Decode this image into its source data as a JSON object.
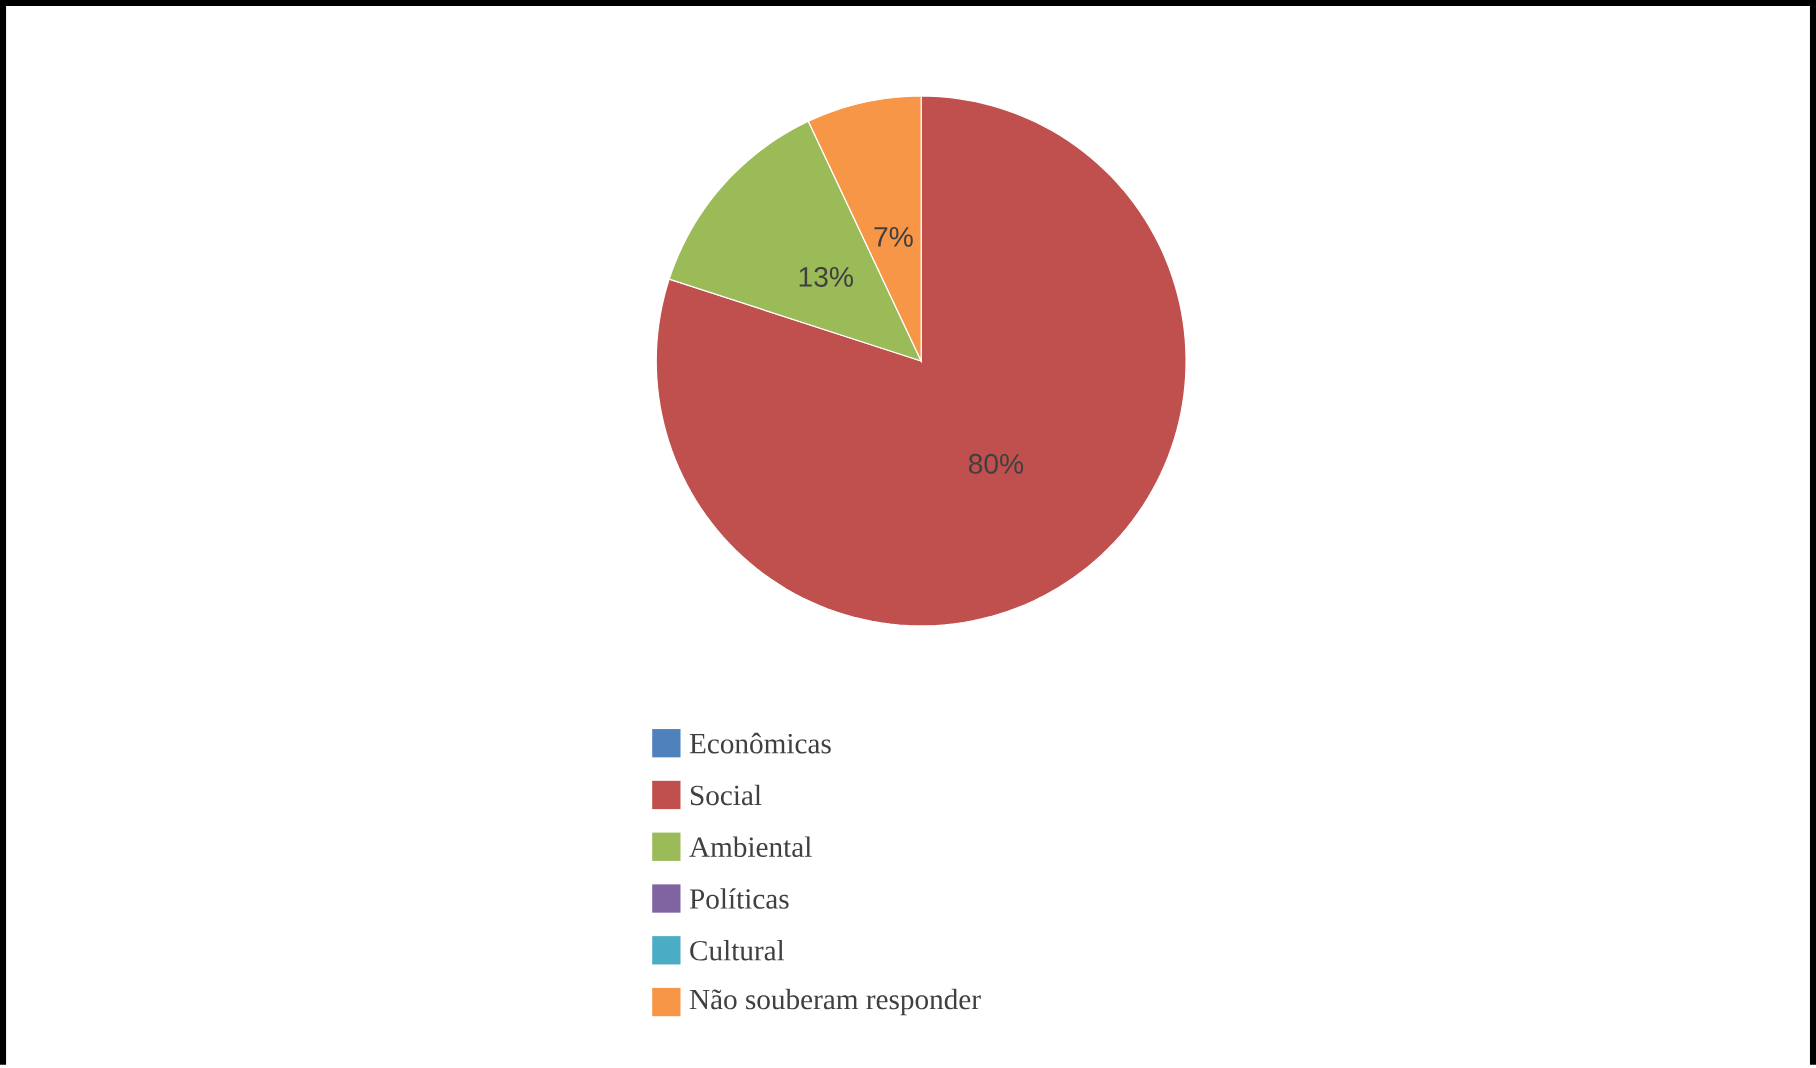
{
  "chart_data": {
    "type": "pie",
    "categories": [
      "Econômicas",
      "Social",
      "Ambiental",
      "Políticas",
      "Cultural",
      "Não souberam responder"
    ],
    "values": [
      0,
      80,
      13,
      0,
      0,
      7
    ],
    "colors": [
      "#4f81bd",
      "#c0504d",
      "#9bbb59",
      "#8064a2",
      "#4bacc6",
      "#f79646"
    ],
    "value_labels": [
      null,
      "80%",
      "13%",
      null,
      null,
      "7%"
    ],
    "legend": "bottom"
  }
}
